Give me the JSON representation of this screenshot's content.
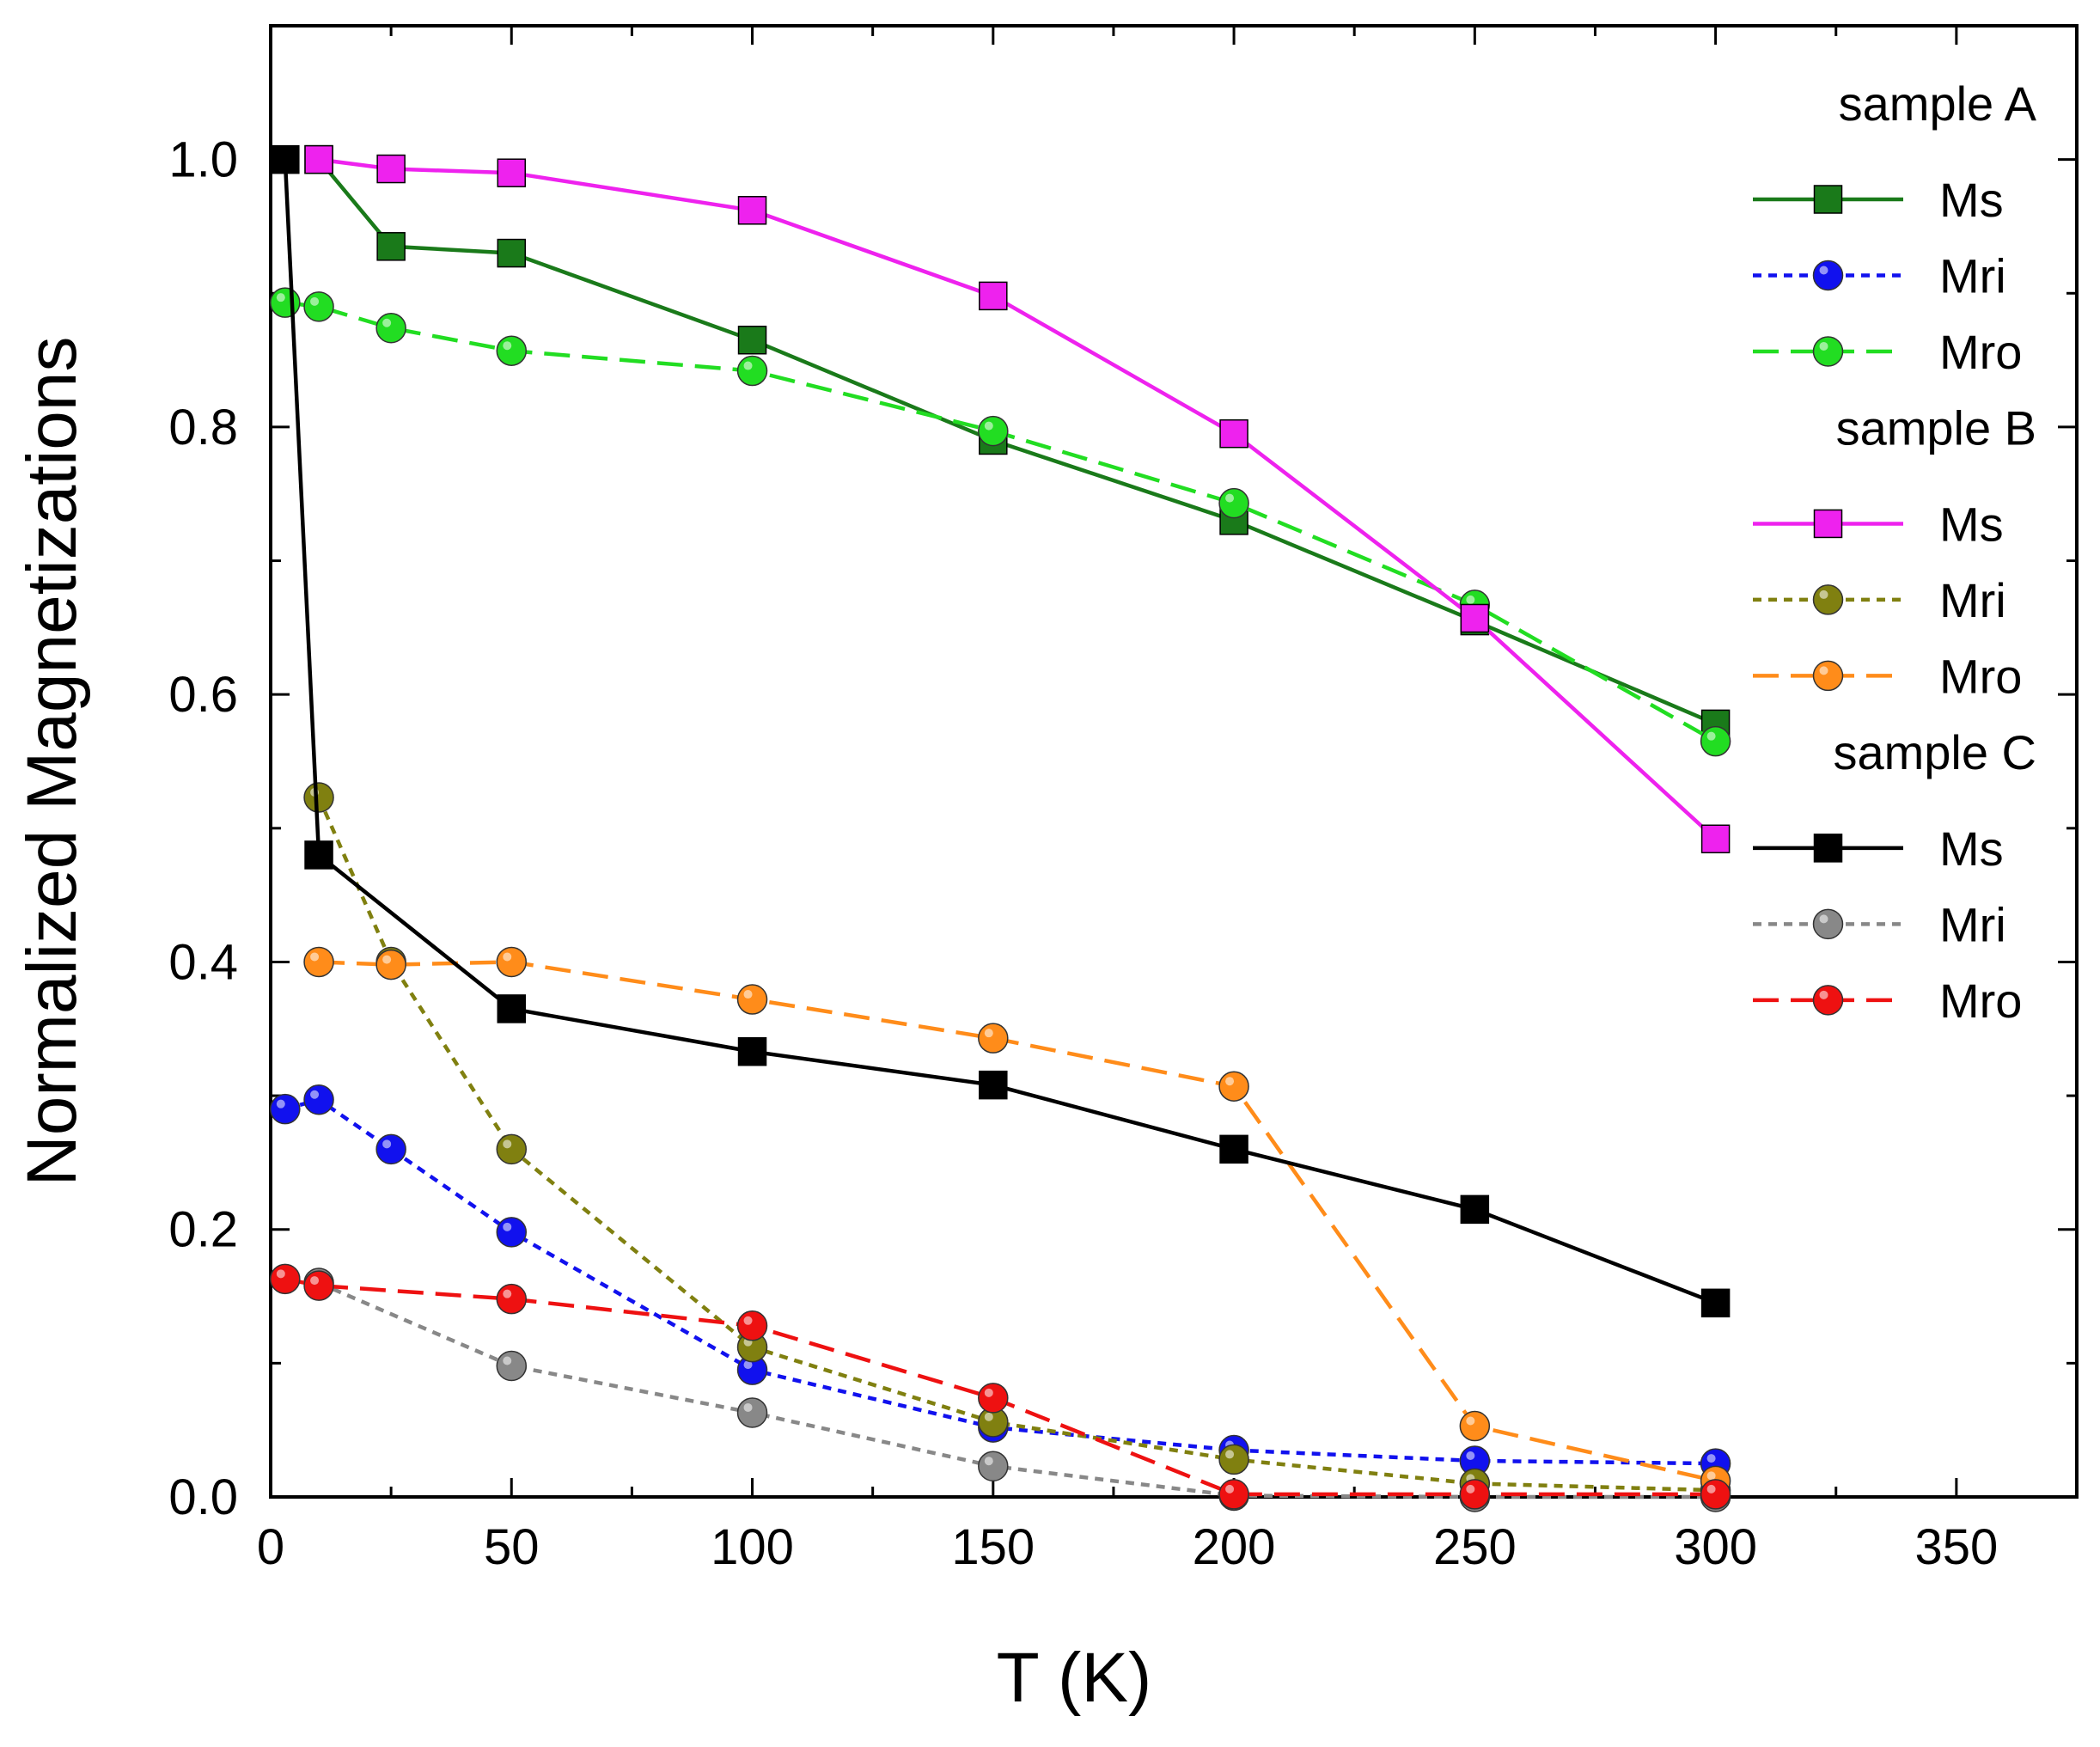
{
  "chart_data": {
    "type": "line",
    "title": "",
    "xlabel": "T (K)",
    "ylabel": "Normalized Magnetizations",
    "xlim": [
      0,
      375
    ],
    "ylim": [
      0,
      1.1
    ],
    "xticks": [
      0,
      50,
      100,
      150,
      200,
      250,
      300,
      350
    ],
    "xtick_labels": [
      "0",
      "50",
      "100",
      "150",
      "200",
      "250",
      "300",
      "350"
    ],
    "yticks": [
      0,
      0.2,
      0.4,
      0.6,
      0.8,
      1.0
    ],
    "ytick_labels": [
      "0.0",
      "0.2",
      "0.4",
      "0.6",
      "0.8",
      "1.0"
    ],
    "grid": false,
    "legend_position": "top-right",
    "legend_groups": [
      {
        "title": "sample A",
        "series": [
          0,
          1,
          2
        ]
      },
      {
        "title": "sample B",
        "series": [
          3,
          4,
          5
        ]
      },
      {
        "title": "sample C",
        "series": [
          6,
          7,
          8
        ]
      }
    ],
    "series": [
      {
        "name": "Ms",
        "sample": "sample A",
        "color": "#1a7a1a",
        "marker": "square",
        "dash": "solid",
        "x": [
          10,
          25,
          50,
          100,
          150,
          200,
          250,
          300
        ],
        "values": [
          1.0,
          0.935,
          0.93,
          0.865,
          0.79,
          0.73,
          0.655,
          0.578
        ]
      },
      {
        "name": "Mri",
        "sample": "sample A",
        "color": "#1111ee",
        "marker": "circle",
        "dash": "dot",
        "x": [
          3,
          10,
          25,
          50,
          100,
          150,
          200,
          250,
          300
        ],
        "values": [
          0.29,
          0.297,
          0.26,
          0.198,
          0.095,
          0.052,
          0.035,
          0.027,
          0.025
        ]
      },
      {
        "name": "Mro",
        "sample": "sample A",
        "color": "#22dd22",
        "marker": "circle",
        "dash": "dash",
        "x": [
          3,
          10,
          25,
          50,
          100,
          150,
          200,
          250,
          300
        ],
        "values": [
          0.893,
          0.89,
          0.874,
          0.857,
          0.842,
          0.797,
          0.743,
          0.667,
          0.565
        ]
      },
      {
        "name": "Ms",
        "sample": "sample B",
        "color": "#ee22ee",
        "marker": "square",
        "dash": "solid",
        "x": [
          10,
          25,
          50,
          100,
          150,
          200,
          250,
          300
        ],
        "values": [
          1.0,
          0.993,
          0.99,
          0.962,
          0.898,
          0.795,
          0.657,
          0.492
        ]
      },
      {
        "name": "Mri",
        "sample": "sample B",
        "color": "#808010",
        "marker": "circle",
        "dash": "dot",
        "x": [
          10,
          25,
          50,
          100,
          150,
          200,
          250,
          300
        ],
        "values": [
          0.523,
          0.4,
          0.26,
          0.112,
          0.056,
          0.028,
          0.01,
          0.005
        ]
      },
      {
        "name": "Mro",
        "sample": "sample B",
        "color": "#ff8c1a",
        "marker": "circle",
        "dash": "dash",
        "x": [
          10,
          25,
          50,
          100,
          150,
          200,
          250,
          300
        ],
        "values": [
          0.4,
          0.398,
          0.4,
          0.372,
          0.343,
          0.307,
          0.053,
          0.012
        ]
      },
      {
        "name": "Ms",
        "sample": "sample C",
        "color": "#000000",
        "marker": "square",
        "dash": "solid",
        "x": [
          3,
          10,
          50,
          100,
          150,
          200,
          250,
          300
        ],
        "values": [
          1.0,
          0.48,
          0.365,
          0.333,
          0.308,
          0.26,
          0.215,
          0.145
        ]
      },
      {
        "name": "Mri",
        "sample": "sample C",
        "color": "#888888",
        "marker": "circle",
        "dash": "dot",
        "x": [
          10,
          50,
          100,
          150,
          200,
          250,
          300
        ],
        "values": [
          0.16,
          0.098,
          0.063,
          0.023,
          0.001,
          0.0,
          0.0
        ]
      },
      {
        "name": "Mro",
        "sample": "sample C",
        "color": "#ee1111",
        "marker": "circle",
        "dash": "dash",
        "x": [
          3,
          10,
          50,
          100,
          150,
          200,
          250,
          300
        ],
        "values": [
          0.163,
          0.158,
          0.148,
          0.128,
          0.074,
          0.002,
          0.002,
          0.002
        ]
      }
    ]
  }
}
